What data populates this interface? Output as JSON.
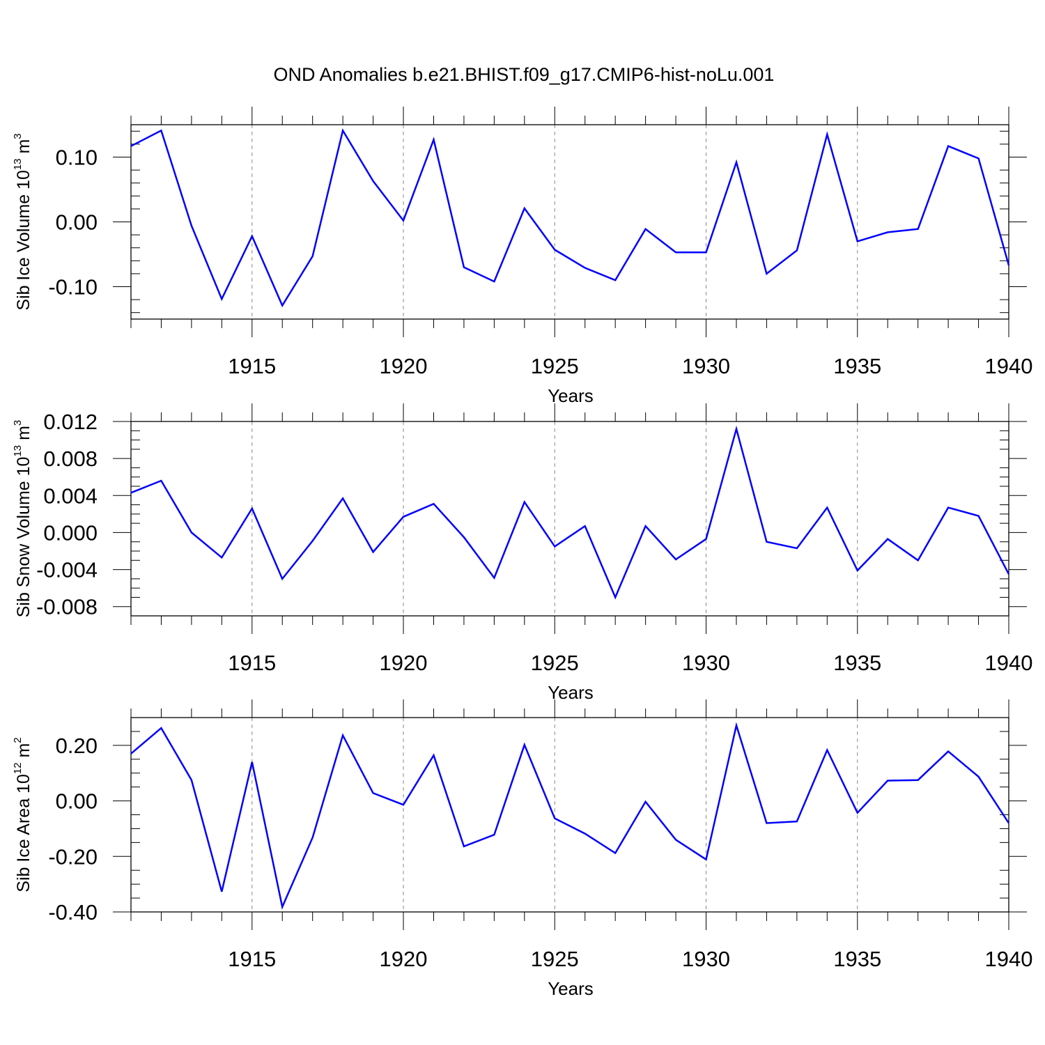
{
  "title": "OND Anomalies b.e21.BHIST.f09_g17.CMIP6-hist-noLu.001",
  "line_color": "#0000ff",
  "grid_color": "#888888",
  "chart_data": [
    {
      "type": "line",
      "ylabel": {
        "main": "Sib Ice Volume 10",
        "exp": "13",
        "unit": " m",
        "unit_exp": "3"
      },
      "xlabel": "Years",
      "xlim": [
        1911,
        1940
      ],
      "ylim": [
        -0.15,
        0.15
      ],
      "xticks": [
        1915,
        1920,
        1925,
        1930,
        1935,
        1940
      ],
      "yticks": [
        0.1,
        0.0,
        -0.1
      ],
      "ytick_labels": [
        "0.10",
        "0.00",
        "-0.10"
      ],
      "yminor": [
        -0.14,
        -0.12,
        -0.08,
        -0.06,
        -0.04,
        -0.02,
        0.02,
        0.04,
        0.06,
        0.08,
        0.12,
        0.14
      ],
      "grid_x": true,
      "series": [
        {
          "name": "Sib Ice Volume",
          "x": [
            1911,
            1912,
            1913,
            1914,
            1915,
            1916,
            1917,
            1918,
            1919,
            1920,
            1921,
            1922,
            1923,
            1924,
            1925,
            1926,
            1927,
            1928,
            1929,
            1930,
            1931,
            1932,
            1933,
            1934,
            1935,
            1936,
            1937,
            1938,
            1939,
            1940
          ],
          "values": [
            0.117,
            0.141,
            -0.006,
            -0.119,
            -0.022,
            -0.129,
            -0.053,
            0.141,
            0.063,
            0.002,
            0.127,
            -0.07,
            -0.092,
            0.021,
            -0.043,
            -0.071,
            -0.09,
            -0.011,
            -0.047,
            -0.047,
            0.092,
            -0.08,
            -0.044,
            0.135,
            -0.03,
            -0.016,
            -0.011,
            0.117,
            0.098,
            -0.067
          ]
        }
      ]
    },
    {
      "type": "line",
      "ylabel": {
        "main": "Sib Snow Volume 10",
        "exp": "13",
        "unit": " m",
        "unit_exp": "3"
      },
      "xlabel": "Years",
      "xlim": [
        1911,
        1940
      ],
      "ylim": [
        -0.009,
        0.012
      ],
      "xticks": [
        1915,
        1920,
        1925,
        1930,
        1935,
        1940
      ],
      "yticks": [
        0.012,
        0.008,
        0.004,
        0.0,
        -0.004,
        -0.008
      ],
      "ytick_labels": [
        "0.012",
        "0.008",
        "0.004",
        "0.000",
        "-0.004",
        "-0.008"
      ],
      "yminor": [
        -0.009,
        -0.007,
        -0.006,
        -0.005,
        -0.003,
        -0.002,
        -0.001,
        0.001,
        0.002,
        0.003,
        0.005,
        0.006,
        0.007,
        0.009,
        0.01,
        0.011
      ],
      "grid_x": true,
      "series": [
        {
          "name": "Sib Snow Volume",
          "x": [
            1911,
            1912,
            1913,
            1914,
            1915,
            1916,
            1917,
            1918,
            1919,
            1920,
            1921,
            1922,
            1923,
            1924,
            1925,
            1926,
            1927,
            1928,
            1929,
            1930,
            1931,
            1932,
            1933,
            1934,
            1935,
            1936,
            1937,
            1938,
            1939,
            1940
          ],
          "values": [
            0.0043,
            0.0056,
            0.0,
            -0.0027,
            0.0026,
            -0.005,
            -0.0009,
            0.0037,
            -0.0021,
            0.0017,
            0.0031,
            -0.0005,
            -0.0049,
            0.0033,
            -0.0015,
            0.0007,
            -0.007,
            0.0007,
            -0.0029,
            -0.0007,
            0.0112,
            -0.001,
            -0.0017,
            0.0027,
            -0.0041,
            -0.0007,
            -0.003,
            0.0027,
            0.0018,
            -0.0045
          ]
        }
      ]
    },
    {
      "type": "line",
      "ylabel": {
        "main": "Sib Ice Area 10",
        "exp": "12",
        "unit": " m",
        "unit_exp": "2"
      },
      "xlabel": "Years",
      "xlim": [
        1911,
        1940
      ],
      "ylim": [
        -0.4,
        0.3
      ],
      "xticks": [
        1915,
        1920,
        1925,
        1930,
        1935,
        1940
      ],
      "yticks": [
        0.2,
        0.0,
        -0.2,
        -0.4
      ],
      "ytick_labels": [
        "0.20",
        "0.00",
        "-0.20",
        "-0.40"
      ],
      "yminor": [
        -0.35,
        -0.3,
        -0.25,
        -0.15,
        -0.1,
        -0.05,
        0.05,
        0.1,
        0.15,
        0.25,
        0.3
      ],
      "grid_x": true,
      "series": [
        {
          "name": "Sib Ice Area",
          "x": [
            1911,
            1912,
            1913,
            1914,
            1915,
            1916,
            1917,
            1918,
            1919,
            1920,
            1921,
            1922,
            1923,
            1924,
            1925,
            1926,
            1927,
            1928,
            1929,
            1930,
            1931,
            1932,
            1933,
            1934,
            1935,
            1936,
            1937,
            1938,
            1939,
            1940
          ],
          "values": [
            0.17,
            0.262,
            0.075,
            -0.327,
            0.14,
            -0.382,
            -0.132,
            0.236,
            0.028,
            -0.014,
            0.164,
            -0.164,
            -0.122,
            0.202,
            -0.063,
            -0.118,
            -0.188,
            -0.003,
            -0.14,
            -0.211,
            0.272,
            -0.08,
            -0.074,
            0.183,
            -0.043,
            0.073,
            0.075,
            0.178,
            0.087,
            -0.08
          ]
        }
      ]
    }
  ]
}
